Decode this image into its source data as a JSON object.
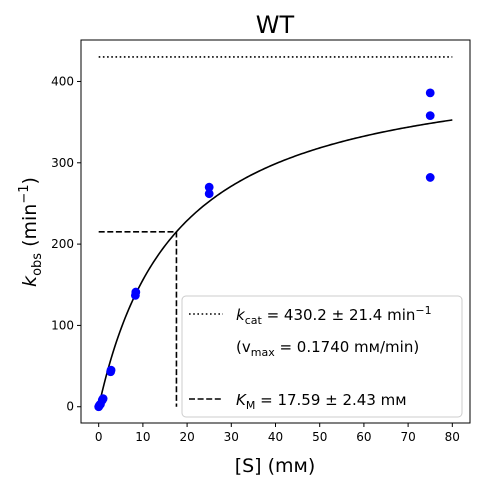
{
  "chart_data": {
    "type": "scatter",
    "title": "WT",
    "xlabel": {
      "main": "[S] (",
      "unit": "mм",
      "close": ")"
    },
    "ylabel": {
      "k": "k",
      "sub": "obs",
      "unit": " (min",
      "sup": "−1",
      "close": ")"
    },
    "xlim": [
      -4,
      84
    ],
    "ylim": [
      -20,
      451
    ],
    "xticks": [
      0,
      10,
      20,
      30,
      40,
      50,
      60,
      70,
      80
    ],
    "yticks": [
      0,
      100,
      200,
      300,
      400
    ],
    "grid": false,
    "legend_position": "lower-right",
    "series": [
      {
        "kind": "points",
        "color": "#0000ff",
        "x": [
          0,
          0.2,
          0.4,
          0.8,
          1.0,
          2.7,
          2.8,
          8.3,
          8.4,
          25,
          25,
          75,
          75,
          75
        ],
        "y": [
          0,
          2,
          3,
          8,
          10,
          43,
          45,
          137,
          141,
          262,
          270,
          282,
          358,
          386
        ]
      },
      {
        "kind": "fit_curve",
        "model": "michaelis_menten",
        "vmax": 430.2,
        "km": 17.59,
        "x_range": [
          0,
          80
        ],
        "color": "#000000"
      },
      {
        "kind": "hline_dotted",
        "y": 430.2,
        "x_range": [
          0,
          80
        ],
        "color": "#000000"
      },
      {
        "kind": "km_guide_dashed",
        "x": 17.59,
        "y": 215.1,
        "color": "#000000"
      }
    ],
    "legend": [
      {
        "style": "dotted",
        "label_parts": [
          "k",
          "cat",
          " = 430.2 ± 21.4 min",
          "−1"
        ]
      },
      {
        "style": "none",
        "label_parts": [
          "(v",
          "max",
          " = 0.1740 mм/min)"
        ]
      },
      {
        "style": "dashed",
        "label_parts": [
          "K",
          "M",
          " = 17.59 ± 2.43 mм"
        ]
      }
    ]
  }
}
